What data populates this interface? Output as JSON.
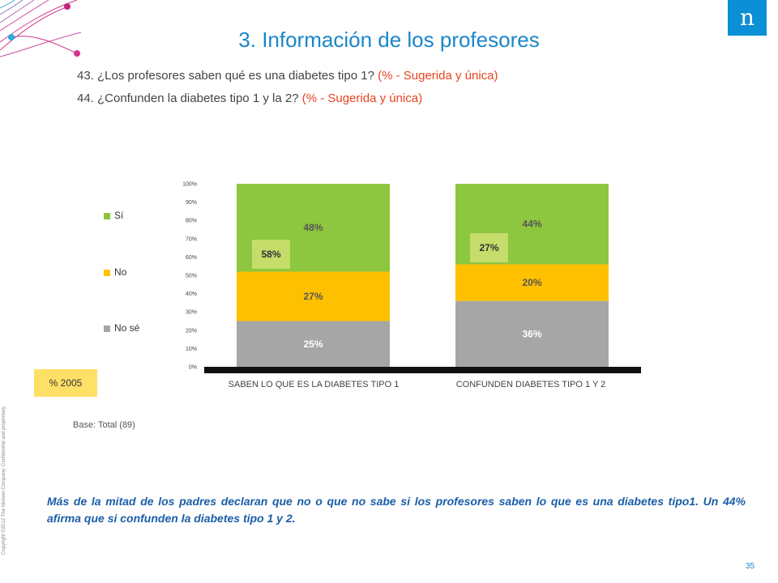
{
  "title": "3. Información de los profesores",
  "questions": [
    {
      "text": "43. ¿Los profesores saben qué es una diabetes tipo 1?",
      "qualifier": "(% - Sugerida y única)"
    },
    {
      "text": "44. ¿Confunden la diabetes tipo 1 y la 2?",
      "qualifier": "(% - Sugerida y única)"
    }
  ],
  "logo_letter": "n",
  "copyright": "Copyright ©2012 The Nielsen Company. Confidential and proprietary.",
  "chart_data": {
    "type": "bar",
    "stacked": true,
    "categories": [
      "SABEN LO QUE ES LA DIABETES TIPO 1",
      "CONFUNDEN DIABETES TIPO 1 Y 2"
    ],
    "series": [
      {
        "name": "No sé",
        "values": [
          25,
          36
        ],
        "labels": [
          "25%",
          "36%"
        ],
        "color": "#a6a6a6"
      },
      {
        "name": "No",
        "values": [
          27,
          20
        ],
        "labels": [
          "27%",
          "20%"
        ],
        "color": "#ffc000"
      },
      {
        "name": "Sí",
        "values": [
          48,
          44
        ],
        "labels": [
          "48%",
          "44%"
        ],
        "color": "#8dc63f"
      }
    ],
    "comparison_2005": {
      "label": "% 2005",
      "values": [
        58,
        27
      ],
      "labels": [
        "58%",
        "27%"
      ],
      "color": "#c6dc6b"
    },
    "yticks": [
      "0%",
      "10%",
      "20%",
      "30%",
      "40%",
      "50%",
      "60%",
      "70%",
      "80%",
      "90%",
      "100%"
    ],
    "ylim": [
      0,
      100
    ],
    "legend_position": "left"
  },
  "legend": [
    {
      "label": "Sí",
      "color": "#8dc63f"
    },
    {
      "label": "No",
      "color": "#ffc000"
    },
    {
      "label": "No sé",
      "color": "#a6a6a6"
    }
  ],
  "badge_2005": "% 2005",
  "base": "Base: Total (89)",
  "conclusion": "Más de la mitad de los padres declaran que no o que no sabe si los profesores saben lo que es una diabetes tipo1. Un 44% afirma que si confunden la diabetes tipo 1 y 2.",
  "page_number": "35"
}
